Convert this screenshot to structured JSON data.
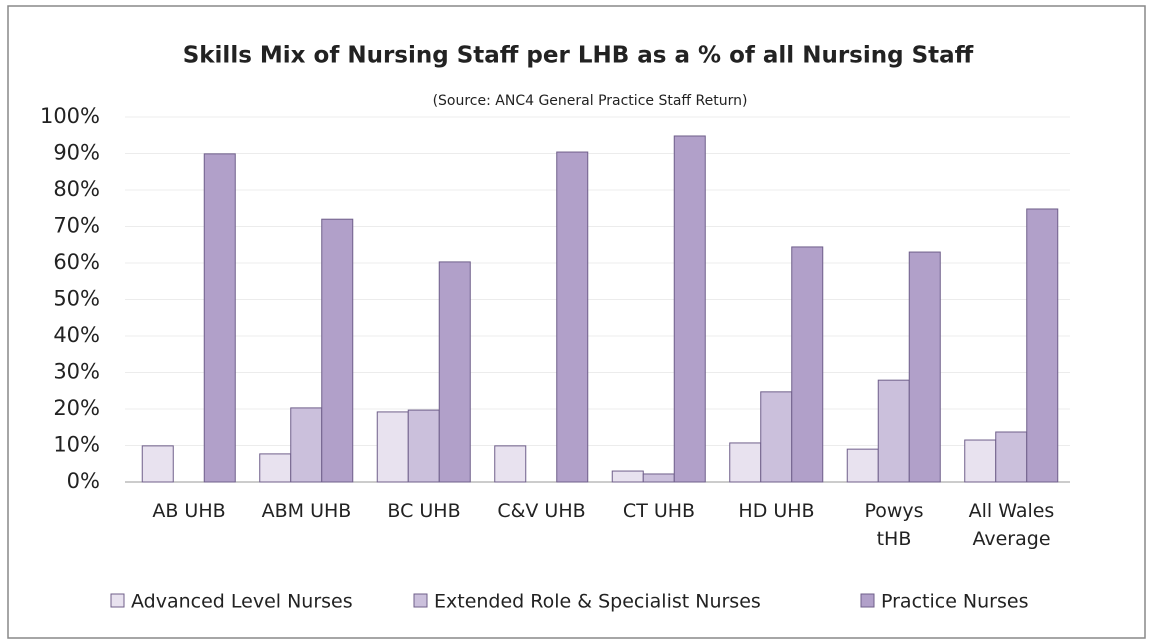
{
  "chart_data": {
    "type": "bar",
    "title": "Skills Mix of Nursing Staff per LHB as a % of all Nursing  Staff",
    "subtitle": "(Source: ANC4 General Practice Staff Return)",
    "categories": [
      "AB UHB",
      "ABM UHB",
      "BC UHB",
      "C&V UHB",
      "CT UHB",
      "HD UHB",
      "Powys tHB",
      "All Wales Average"
    ],
    "series": [
      {
        "name": "Advanced Level Nurses",
        "color": "#e8e2ef",
        "values": [
          9.9,
          7.7,
          19.2,
          9.9,
          3,
          10.7,
          9,
          11.5
        ]
      },
      {
        "name": "Extended Role & Specialist Nurses",
        "color": "#cbc0dc",
        "values": [
          0,
          20.3,
          19.7,
          0,
          2.2,
          24.7,
          27.9,
          13.7
        ]
      },
      {
        "name": "Practice Nurses",
        "color": "#b1a0c9",
        "values": [
          89.9,
          72,
          60.3,
          90.4,
          94.8,
          64.4,
          63,
          74.8
        ]
      }
    ],
    "ylim": [
      0,
      100
    ],
    "yticks": [
      {
        "value": 0,
        "label": "0%"
      },
      {
        "value": 10,
        "label": "10%"
      },
      {
        "value": 20,
        "label": "20%"
      },
      {
        "value": 30,
        "label": "30%"
      },
      {
        "value": 40,
        "label": "40%"
      },
      {
        "value": 50,
        "label": "50%"
      },
      {
        "value": 60,
        "label": "60%"
      },
      {
        "value": 70,
        "label": "70%"
      },
      {
        "value": 80,
        "label": "80%"
      },
      {
        "value": 90,
        "label": "90%"
      },
      {
        "value": 100,
        "label": "100%"
      }
    ],
    "grid": true,
    "legend": "bottom"
  }
}
